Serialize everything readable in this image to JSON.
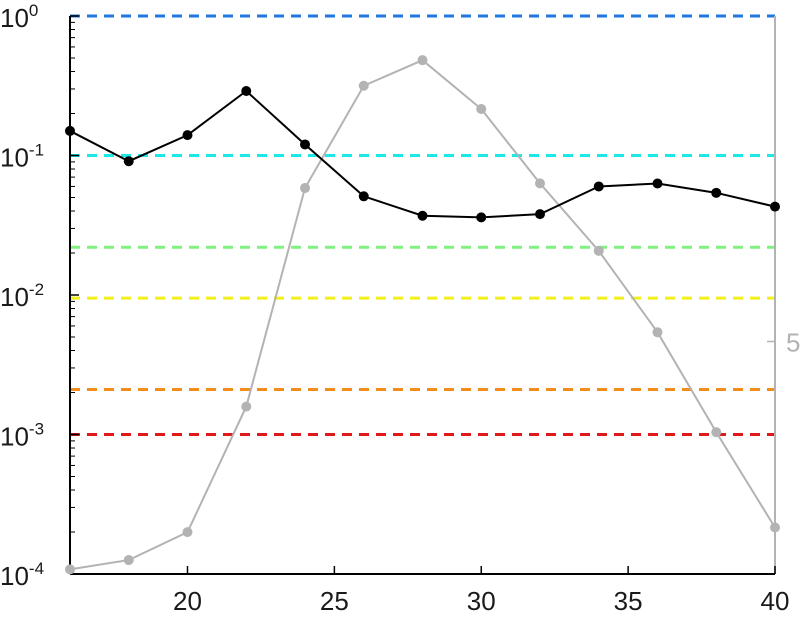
{
  "chart_data": {
    "type": "line",
    "xlim": [
      16,
      40
    ],
    "x_ticks": [
      20,
      25,
      30,
      35,
      40
    ],
    "y_left": {
      "scale": "log",
      "lim": [
        0.0001,
        1
      ],
      "ticks": [
        {
          "value": 1,
          "base": "10",
          "exp": "0"
        },
        {
          "value": 0.1,
          "base": "10",
          "exp": "-1"
        },
        {
          "value": 0.01,
          "base": "10",
          "exp": "-2"
        },
        {
          "value": 0.001,
          "base": "10",
          "exp": "-3"
        },
        {
          "value": 0.0001,
          "base": "10",
          "exp": "-4"
        }
      ]
    },
    "y_right": {
      "visible_tick_labels": [
        {
          "value": 5,
          "label": "5"
        }
      ]
    },
    "reference_lines": [
      {
        "y": 1,
        "color": "#1f78e0"
      },
      {
        "y": 0.1,
        "color": "#1ce8e8"
      },
      {
        "y": 0.022,
        "color": "#7ff27f"
      },
      {
        "y": 0.0095,
        "color": "#f2ef1a"
      },
      {
        "y": 0.0021,
        "color": "#f28c1a"
      },
      {
        "y": 0.001,
        "color": "#e01a1a"
      }
    ],
    "series": [
      {
        "axis": "left",
        "color": "#000000",
        "x": [
          16,
          18,
          20,
          22,
          24,
          26,
          28,
          30,
          32,
          34,
          36,
          38,
          40
        ],
        "y": [
          0.15,
          0.091,
          0.14,
          0.29,
          0.12,
          0.051,
          0.037,
          0.036,
          0.038,
          0.06,
          0.063,
          0.054,
          0.043
        ]
      },
      {
        "axis": "right",
        "color": "#b3b3b3",
        "x": [
          16,
          18,
          20,
          22,
          24,
          26,
          28,
          30,
          32,
          34,
          36,
          38,
          40
        ],
        "y": [
          0.1,
          0.3,
          0.9,
          3.6,
          8.3,
          10.5,
          11.05,
          10.0,
          8.4,
          6.95,
          5.2,
          3.05,
          1.0
        ]
      }
    ],
    "right_axis_lim": [
      0,
      12
    ]
  }
}
